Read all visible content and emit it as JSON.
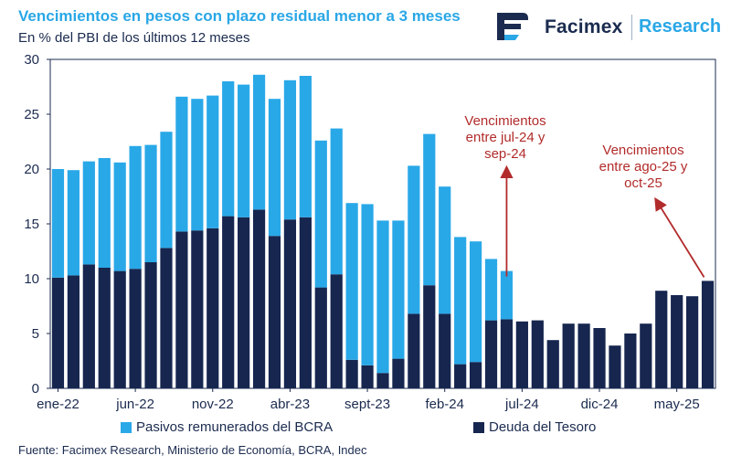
{
  "header": {
    "title": "Vencimientos en pesos con plazo residual menor a 3 meses",
    "subtitle": "En % del PBI de los últimos 12 meses"
  },
  "logo": {
    "brand": "Facimex",
    "section": "Research"
  },
  "colors": {
    "bcra": "#29a8e8",
    "tesoro": "#16264f",
    "accent": "#b22b2b",
    "title": "#2aa7e6"
  },
  "chart_data": {
    "type": "bar",
    "stacked": true,
    "title": "Vencimientos en pesos con plazo residual menor a 3 meses",
    "ylabel": "En % del PBI de los últimos 12 meses",
    "ylim": [
      0,
      30
    ],
    "yticks": [
      0,
      5,
      10,
      15,
      20,
      25,
      30
    ],
    "xtick_labels": [
      {
        "label": "ene-22",
        "index": 0
      },
      {
        "label": "jun-22",
        "index": 5
      },
      {
        "label": "nov-22",
        "index": 10
      },
      {
        "label": "abr-23",
        "index": 15
      },
      {
        "label": "sept-23",
        "index": 20
      },
      {
        "label": "feb-24",
        "index": 25
      },
      {
        "label": "jul-24",
        "index": 30
      },
      {
        "label": "dic-24",
        "index": 35
      },
      {
        "label": "may-25",
        "index": 40
      }
    ],
    "series": [
      {
        "name": "Deuda del Tesoro",
        "color": "#16264f",
        "values": [
          10.1,
          10.3,
          11.3,
          11.0,
          10.7,
          10.9,
          11.5,
          12.8,
          14.3,
          14.4,
          14.6,
          15.7,
          15.6,
          16.3,
          13.9,
          15.4,
          15.6,
          9.2,
          10.4,
          2.6,
          2.1,
          1.4,
          2.7,
          6.8,
          9.4,
          6.8,
          2.2,
          2.4,
          6.2,
          6.3,
          6.1,
          6.2,
          4.4,
          5.9,
          5.9,
          5.5,
          3.9,
          5.0,
          5.9,
          8.9,
          8.5,
          8.4,
          9.8
        ]
      },
      {
        "name": "Pasivos remunerados del BCRA",
        "color": "#29a8e8",
        "values": [
          9.9,
          9.6,
          9.4,
          10.0,
          9.9,
          11.2,
          10.7,
          10.6,
          12.3,
          12.0,
          12.1,
          12.3,
          12.1,
          12.3,
          12.5,
          12.7,
          12.9,
          13.4,
          13.3,
          14.3,
          14.7,
          13.9,
          12.6,
          13.5,
          13.8,
          11.6,
          11.6,
          11.0,
          5.6,
          4.4,
          0,
          0,
          0,
          0,
          0,
          0,
          0,
          0,
          0,
          0,
          0,
          0,
          0
        ]
      }
    ],
    "legend": [
      "Pasivos remunerados del BCRA",
      "Deuda del Tesoro"
    ],
    "annotations": [
      {
        "text": [
          "Vencimientos",
          "entre jul-24 y",
          "sep-24"
        ],
        "points_to_index": 29
      },
      {
        "text": [
          "Vencimientos",
          "entre ago-25 y",
          "oct-25"
        ],
        "points_to_index": 42
      }
    ]
  },
  "source": "Fuente: Facimex Research, Ministerio de Economía, BCRA, Indec"
}
